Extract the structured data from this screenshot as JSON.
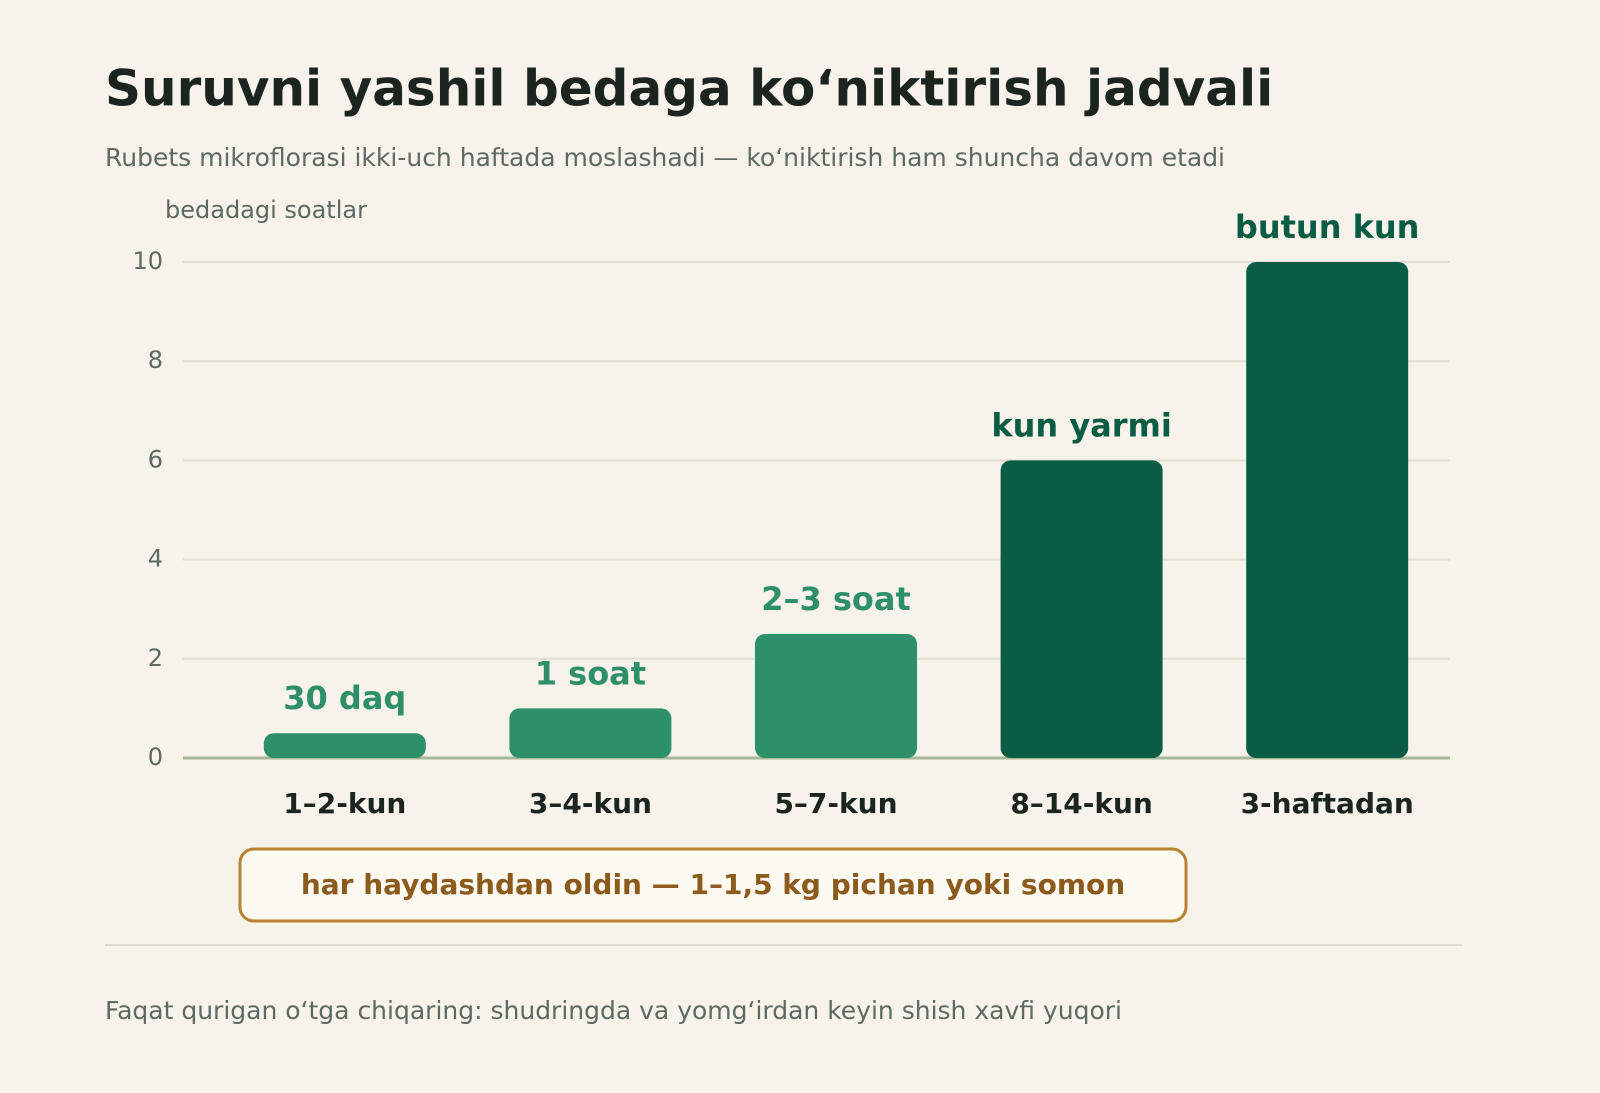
{
  "chart_data": {
    "type": "bar",
    "title": "Suruvni yashil bedaga koʻniktirish jadvali",
    "subtitle": "Rubets mikroflorasi ikki-uch haftada moslashadi — koʻniktirish ham shuncha davom etadi",
    "y_label": "bedadagi soatlar",
    "categories": [
      "1–2-kun",
      "3–4-kun",
      "5–7-kun",
      "8–14-kun",
      "3-haftadan"
    ],
    "values": [
      0.5,
      1,
      2.5,
      6,
      10
    ],
    "value_labels": [
      "30 daq",
      "1 soat",
      "2–3 soat",
      "kun yarmi",
      "butun kun"
    ],
    "colors": [
      "#2e9068",
      "#2e9068",
      "#2e9068",
      "#0b5c44",
      "#0b5c44"
    ],
    "ylim": [
      0,
      10
    ],
    "yticks": [
      0,
      2,
      4,
      6,
      8,
      10
    ],
    "grid": true,
    "annotation": "har haydashdan oldin — 1–1,5 kg pichan yoki somon",
    "footnote": "Faqat qurigan oʻtga chiqaring: shudringda va yomgʻirdan keyin shish xavfi yuqori"
  }
}
